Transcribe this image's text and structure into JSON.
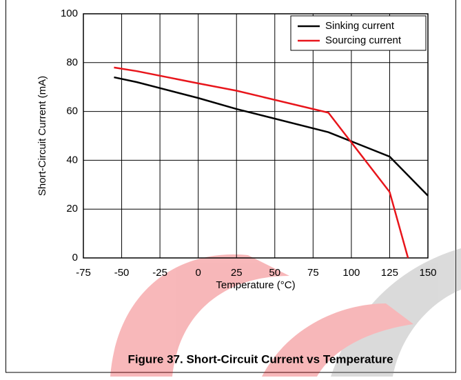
{
  "chart_data": {
    "type": "line",
    "caption": "Figure 37. Short-Circuit Current vs Temperature",
    "xlabel": "Temperature (°C)",
    "ylabel": "Short-Circuit Current (mA)",
    "xlim": [
      -75,
      150
    ],
    "xticks": [
      -75,
      -50,
      -25,
      0,
      25,
      50,
      75,
      100,
      125,
      150
    ],
    "ylim": [
      0,
      100
    ],
    "yticks": [
      0,
      20,
      40,
      60,
      80,
      100
    ],
    "grid": true,
    "legend": "upper-right",
    "series": [
      {
        "name": "Sinking current",
        "color": "#000000",
        "x": [
          -55,
          -40,
          0,
          25,
          85,
          125,
          150
        ],
        "values": [
          74,
          72,
          65.5,
          61,
          51.5,
          41.5,
          25.5
        ]
      },
      {
        "name": "Sourcing current",
        "color": "#e8151b",
        "x": [
          -55,
          -40,
          0,
          25,
          85,
          125,
          137
        ],
        "values": [
          78,
          76.5,
          71.5,
          68.5,
          59.5,
          27,
          0
        ]
      }
    ]
  }
}
